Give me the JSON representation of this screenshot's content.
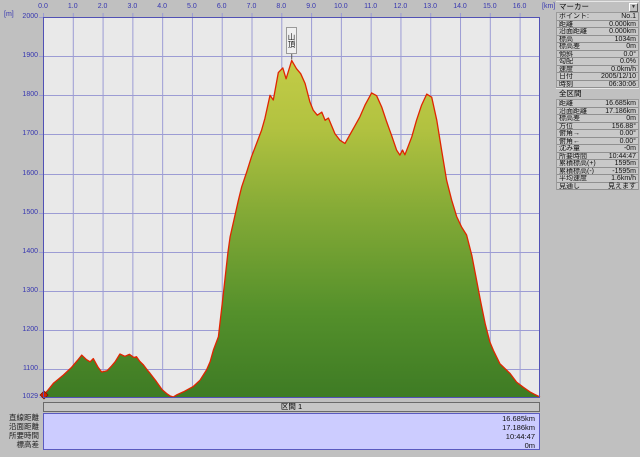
{
  "icons": {
    "panel_menu": "▼"
  },
  "chart": {
    "annotation": {
      "label": "山頂",
      "x_km": 8.35
    },
    "axes": {
      "x": {
        "unit": "[km]",
        "tick_labels": [
          "0.0",
          "1.0",
          "2.0",
          "3.0",
          "4.0",
          "5.0",
          "6.0",
          "7.0",
          "8.0",
          "9.0",
          "10.0",
          "11.0",
          "12.0",
          "13.0",
          "14.0",
          "15.0",
          "16.0"
        ],
        "tick_values": [
          0,
          1,
          2,
          3,
          4,
          5,
          6,
          7,
          8,
          9,
          10,
          11,
          12,
          13,
          14,
          15,
          16
        ]
      },
      "y": {
        "unit": "[m]",
        "tick_labels": [
          "2000",
          "1900",
          "1800",
          "1700",
          "1600",
          "1500",
          "1400",
          "1300",
          "1200",
          "1100",
          "1029"
        ],
        "tick_values": [
          2000,
          1900,
          1800,
          1700,
          1600,
          1500,
          1400,
          1300,
          1200,
          1100,
          1029
        ]
      }
    },
    "colors": {
      "line": "#e02500",
      "grid": "#9c9cd4",
      "axis_border": "#5151b5",
      "fill_stops": [
        "#c3cc47",
        "#b2c240",
        "#84aa36",
        "#54902b",
        "#3e7b24"
      ],
      "plot_bg": "#e9e9e9",
      "summary_bg": "#ccccff",
      "label_color": "#3636b0"
    }
  },
  "chart_data": {
    "type": "area",
    "title": "",
    "xlabel": "[km]",
    "ylabel": "[m]",
    "xlim": [
      0,
      16.685
    ],
    "ylim": [
      1029,
      2000
    ],
    "grid": true,
    "x": [
      0,
      0.15,
      0.35,
      0.68,
      0.96,
      1.15,
      1.3,
      1.45,
      1.58,
      1.69,
      1.85,
      1.97,
      2.15,
      2.3,
      2.42,
      2.58,
      2.75,
      2.9,
      3.05,
      3.14,
      3.25,
      3.37,
      3.5,
      3.59,
      3.81,
      4.0,
      4.15,
      4.26,
      4.37,
      4.5,
      4.71,
      4.9,
      5.05,
      5.27,
      5.49,
      5.61,
      5.72,
      5.89,
      6.05,
      6.21,
      6.28,
      6.56,
      6.67,
      6.84,
      7.0,
      7.17,
      7.34,
      7.45,
      7.62,
      7.73,
      7.9,
      8.05,
      8.16,
      8.35,
      8.51,
      8.65,
      8.8,
      8.96,
      9.07,
      9.21,
      9.36,
      9.47,
      9.58,
      9.8,
      9.97,
      10.14,
      10.42,
      10.64,
      10.81,
      11.03,
      11.2,
      11.37,
      11.54,
      11.7,
      11.87,
      11.98,
      12.07,
      12.15,
      12.38,
      12.54,
      12.71,
      12.88,
      13.05,
      13.22,
      13.38,
      13.55,
      13.72,
      13.89,
      14.05,
      14.22,
      14.4,
      14.55,
      14.7,
      14.85,
      15.0,
      15.12,
      15.34,
      15.68,
      15.9,
      16.12,
      16.35,
      16.5,
      16.63,
      16.685
    ],
    "y": [
      1034,
      1045,
      1064,
      1085,
      1105,
      1122,
      1136,
      1125,
      1119,
      1127,
      1105,
      1093,
      1096,
      1108,
      1119,
      1139,
      1133,
      1138,
      1130,
      1132,
      1120,
      1111,
      1098,
      1090,
      1068,
      1048,
      1038,
      1032,
      1029,
      1035,
      1042,
      1050,
      1056,
      1072,
      1098,
      1119,
      1149,
      1183,
      1290,
      1400,
      1438,
      1532,
      1566,
      1604,
      1643,
      1677,
      1711,
      1741,
      1800,
      1788,
      1858,
      1870,
      1842,
      1889,
      1868,
      1855,
      1830,
      1783,
      1762,
      1749,
      1757,
      1736,
      1742,
      1702,
      1685,
      1677,
      1715,
      1745,
      1775,
      1806,
      1799,
      1770,
      1732,
      1698,
      1660,
      1647,
      1660,
      1648,
      1694,
      1736,
      1775,
      1803,
      1795,
      1736,
      1660,
      1583,
      1532,
      1490,
      1464,
      1443,
      1390,
      1330,
      1270,
      1215,
      1170,
      1148,
      1114,
      1089,
      1067,
      1054,
      1042,
      1036,
      1031,
      1029
    ],
    "annotations": [
      {
        "x": 8.35,
        "label": "山頂"
      }
    ]
  },
  "marker_panel": {
    "title": "マーカー",
    "rows": [
      {
        "label": "ポイント:",
        "value": "No.1"
      },
      {
        "label": "距離",
        "value": "0.000km"
      },
      {
        "label": "沿面距離",
        "value": "0.000km"
      },
      {
        "label": "標高",
        "value": "1034m"
      },
      {
        "label": "標高差",
        "value": "0m"
      },
      {
        "label": "傾斜",
        "value": "0.0°"
      },
      {
        "label": "勾配",
        "value": "0.0%"
      },
      {
        "label": "速度",
        "value": "0.0km/h"
      },
      {
        "label": "日付",
        "value": "2005/12/10"
      },
      {
        "label": "時刻",
        "value": "06:30:06"
      }
    ]
  },
  "section_panel": {
    "title": "全区間",
    "rows": [
      {
        "label": "距離",
        "value": "16.685km"
      },
      {
        "label": "沿面距離",
        "value": "17.186km"
      },
      {
        "label": "標高差",
        "value": "0m"
      },
      {
        "label": "方位",
        "value": "156.88°"
      },
      {
        "label": "俯角→",
        "value": "0.00°"
      },
      {
        "label": "俯角←",
        "value": "0.00°"
      },
      {
        "label": "沈み量",
        "value": "-0m"
      },
      {
        "label": "所要時間",
        "value": "10:44:47"
      },
      {
        "label": "累積標高(+)",
        "value": "1595m"
      },
      {
        "label": "累積標高(-)",
        "value": "-1595m"
      },
      {
        "label": "平均速度",
        "value": "1.6km/h"
      },
      {
        "label": "見通し",
        "value": "見えます"
      }
    ]
  },
  "summary": {
    "header": "区間 1",
    "rows": [
      {
        "label": "直線距離",
        "value": "16.685km"
      },
      {
        "label": "沿面距離",
        "value": "17.186km"
      },
      {
        "label": "所要時間",
        "value": "10:44:47"
      },
      {
        "label": "標高差",
        "value": "0m"
      }
    ]
  }
}
